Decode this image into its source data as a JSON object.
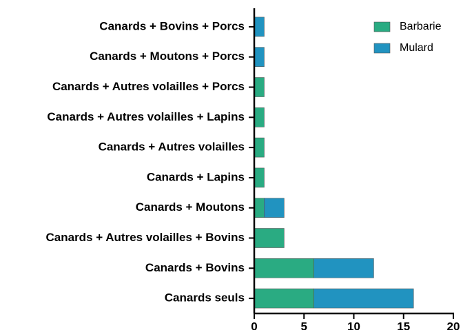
{
  "chart_data": {
    "type": "bar",
    "orientation": "horizontal",
    "stacked": true,
    "categories": [
      "Canards + Bovins + Porcs",
      "Canards + Moutons + Porcs",
      "Canards + Autres volailles + Porcs",
      "Canards + Autres volailles + Lapins",
      "Canards + Autres volailles",
      "Canards + Lapins",
      "Canards + Moutons",
      "Canards + Autres volailles + Bovins",
      "Canards + Bovins",
      "Canards seuls"
    ],
    "series": [
      {
        "name": "Barbarie",
        "color": "#2aab82",
        "values": [
          0,
          0,
          1,
          1,
          1,
          1,
          1,
          3,
          6,
          6
        ]
      },
      {
        "name": "Mulard",
        "color": "#2193c0",
        "values": [
          1,
          1,
          0,
          0,
          0,
          0,
          2,
          0,
          6,
          10
        ]
      }
    ],
    "xlim": [
      0,
      20
    ],
    "xticks": [
      0,
      5,
      10,
      15,
      20
    ],
    "legend": "top-right"
  }
}
